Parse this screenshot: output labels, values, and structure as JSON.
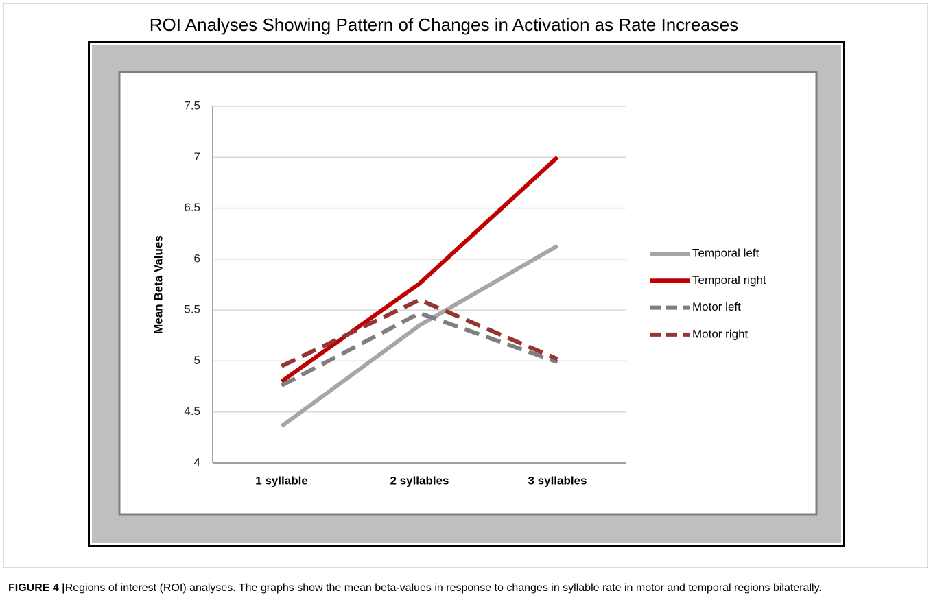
{
  "chart_data": {
    "type": "line",
    "title": "ROI Analyses Showing Pattern of Changes in Activation as Rate Increases",
    "y_label": "Mean Beta Values",
    "categories": [
      "1 syllable",
      "2 syllables",
      "3 syllables"
    ],
    "series": [
      {
        "name": "Temporal left",
        "color": "#a6a6a6",
        "line_style": "solid",
        "values": [
          4.36,
          5.35,
          6.13
        ]
      },
      {
        "name": "Temporal right",
        "color": "#c00000",
        "line_style": "solid",
        "values": [
          4.8,
          5.76,
          7.0
        ]
      },
      {
        "name": "Motor left",
        "color": "#7f7f7f",
        "line_style": "dashed",
        "values": [
          4.76,
          5.47,
          4.99
        ]
      },
      {
        "name": "Motor right",
        "color": "#943634",
        "line_style": "dashed",
        "values": [
          4.95,
          5.6,
          5.02
        ]
      }
    ],
    "ylim": [
      4,
      7.5
    ],
    "yticks": [
      4,
      4.5,
      5,
      5.5,
      6,
      6.5,
      7,
      7.5
    ],
    "grid": true,
    "legend": "right"
  },
  "caption": {
    "label": "FIGURE 4 |",
    "text": " Regions of interest (ROI) analyses. The graphs show the mean beta-values in response to changes in syllable rate in motor and temporal regions bilaterally."
  }
}
